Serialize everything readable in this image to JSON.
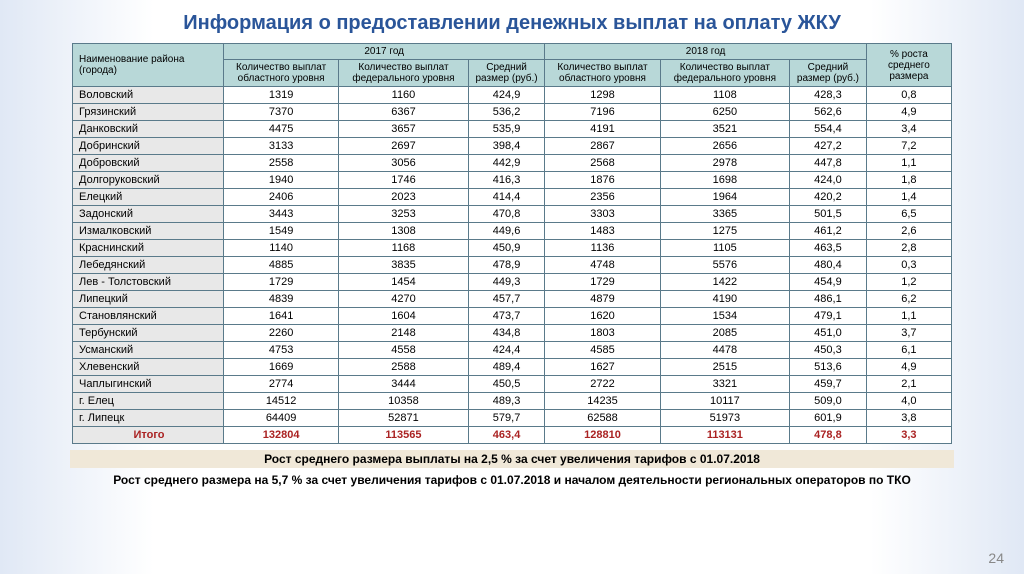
{
  "title": "Информация о предоставлении денежных выплат на оплату ЖКУ",
  "headers": {
    "name": "Наименование района (города)",
    "year2017": "2017 год",
    "year2018": "2018 год",
    "growth": "% роста среднего размера",
    "regional": "Количество выплат областного уровня",
    "federal": "Количество выплат федерального уровня",
    "avg": "Средний размер (руб.)"
  },
  "rows": [
    {
      "name": "Воловский",
      "r17": "1319",
      "f17": "1160",
      "a17": "424,9",
      "r18": "1298",
      "f18": "1108",
      "a18": "428,3",
      "g": "0,8"
    },
    {
      "name": "Грязинский",
      "r17": "7370",
      "f17": "6367",
      "a17": "536,2",
      "r18": "7196",
      "f18": "6250",
      "a18": "562,6",
      "g": "4,9"
    },
    {
      "name": "Данковский",
      "r17": "4475",
      "f17": "3657",
      "a17": "535,9",
      "r18": "4191",
      "f18": "3521",
      "a18": "554,4",
      "g": "3,4"
    },
    {
      "name": "Добринский",
      "r17": "3133",
      "f17": "2697",
      "a17": "398,4",
      "r18": "2867",
      "f18": "2656",
      "a18": "427,2",
      "g": "7,2"
    },
    {
      "name": "Добровский",
      "r17": "2558",
      "f17": "3056",
      "a17": "442,9",
      "r18": "2568",
      "f18": "2978",
      "a18": "447,8",
      "g": "1,1"
    },
    {
      "name": "Долгоруковский",
      "r17": "1940",
      "f17": "1746",
      "a17": "416,3",
      "r18": "1876",
      "f18": "1698",
      "a18": "424,0",
      "g": "1,8"
    },
    {
      "name": "Елецкий",
      "r17": "2406",
      "f17": "2023",
      "a17": "414,4",
      "r18": "2356",
      "f18": "1964",
      "a18": "420,2",
      "g": "1,4"
    },
    {
      "name": "Задонский",
      "r17": "3443",
      "f17": "3253",
      "a17": "470,8",
      "r18": "3303",
      "f18": "3365",
      "a18": "501,5",
      "g": "6,5"
    },
    {
      "name": "Измалковский",
      "r17": "1549",
      "f17": "1308",
      "a17": "449,6",
      "r18": "1483",
      "f18": "1275",
      "a18": "461,2",
      "g": "2,6"
    },
    {
      "name": "Краснинский",
      "r17": "1140",
      "f17": "1168",
      "a17": "450,9",
      "r18": "1136",
      "f18": "1105",
      "a18": "463,5",
      "g": "2,8"
    },
    {
      "name": "Лебедянский",
      "r17": "4885",
      "f17": "3835",
      "a17": "478,9",
      "r18": "4748",
      "f18": "5576",
      "a18": "480,4",
      "g": "0,3"
    },
    {
      "name": "Лев - Толстовский",
      "r17": "1729",
      "f17": "1454",
      "a17": "449,3",
      "r18": "1729",
      "f18": "1422",
      "a18": "454,9",
      "g": "1,2"
    },
    {
      "name": "Липецкий",
      "r17": "4839",
      "f17": "4270",
      "a17": "457,7",
      "r18": "4879",
      "f18": "4190",
      "a18": "486,1",
      "g": "6,2"
    },
    {
      "name": "Становлянский",
      "r17": "1641",
      "f17": "1604",
      "a17": "473,7",
      "r18": "1620",
      "f18": "1534",
      "a18": "479,1",
      "g": "1,1"
    },
    {
      "name": "Тербунский",
      "r17": "2260",
      "f17": "2148",
      "a17": "434,8",
      "r18": "1803",
      "f18": "2085",
      "a18": "451,0",
      "g": "3,7"
    },
    {
      "name": "Усманский",
      "r17": "4753",
      "f17": "4558",
      "a17": "424,4",
      "r18": "4585",
      "f18": "4478",
      "a18": "450,3",
      "g": "6,1"
    },
    {
      "name": "Хлевенский",
      "r17": "1669",
      "f17": "2588",
      "a17": "489,4",
      "r18": "1627",
      "f18": "2515",
      "a18": "513,6",
      "g": "4,9"
    },
    {
      "name": "Чаплыгинский",
      "r17": "2774",
      "f17": "3444",
      "a17": "450,5",
      "r18": "2722",
      "f18": "3321",
      "a18": "459,7",
      "g": "2,1"
    },
    {
      "name": "г. Елец",
      "r17": "14512",
      "f17": "10358",
      "a17": "489,3",
      "r18": "14235",
      "f18": "10117",
      "a18": "509,0",
      "g": "4,0"
    },
    {
      "name": "г. Липецк",
      "r17": "64409",
      "f17": "52871",
      "a17": "579,7",
      "r18": "62588",
      "f18": "51973",
      "a18": "601,9",
      "g": "3,8"
    }
  ],
  "total": {
    "name": "Итого",
    "r17": "132804",
    "f17": "113565",
    "a17": "463,4",
    "r18": "128810",
    "f18": "113131",
    "a18": "478,8",
    "g": "3,3"
  },
  "footnote1": "Рост среднего размера выплаты на 2,5 % за счет увеличения тарифов с 01.07.2018",
  "footnote2": "Рост среднего размера на 5,7 % за счет увеличения тарифов с 01.07.2018 и началом деятельности региональных операторов по ТКО",
  "page": "24"
}
